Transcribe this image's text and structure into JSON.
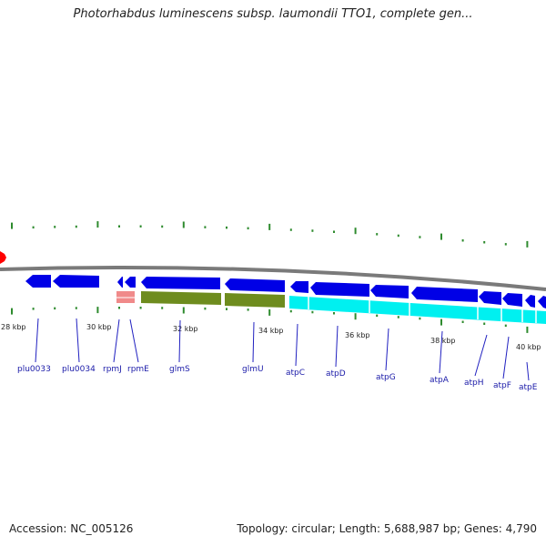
{
  "title": "Photorhabdus luminescens subsp. laumondii TTO1, complete gen...",
  "accession_text": "Accession: NC_005126",
  "summary_text": "Topology: circular; Length: 5,688,987 bp; Genes: 4,790",
  "scale_labels": [
    "28 kbp",
    "30 kbp",
    "32 kbp",
    "34 kbp",
    "36 kbp",
    "38 kbp",
    "40 kbp"
  ],
  "gene_labels": [
    "plu0033",
    "plu0034",
    "rpmJ",
    "rpmE",
    "glmS",
    "glmU",
    "atpC",
    "atpD",
    "atpG",
    "atpA",
    "atpH",
    "atpF",
    "atpE"
  ],
  "colors": {
    "cds": "#0000e6",
    "rrna": "#f08a8a",
    "cog_green": "#6e8c1e",
    "cog_cyan": "#00f0f0",
    "tick": "#2e8b2e",
    "backbone": "#7a7a7a",
    "marker": "#ff0000"
  }
}
